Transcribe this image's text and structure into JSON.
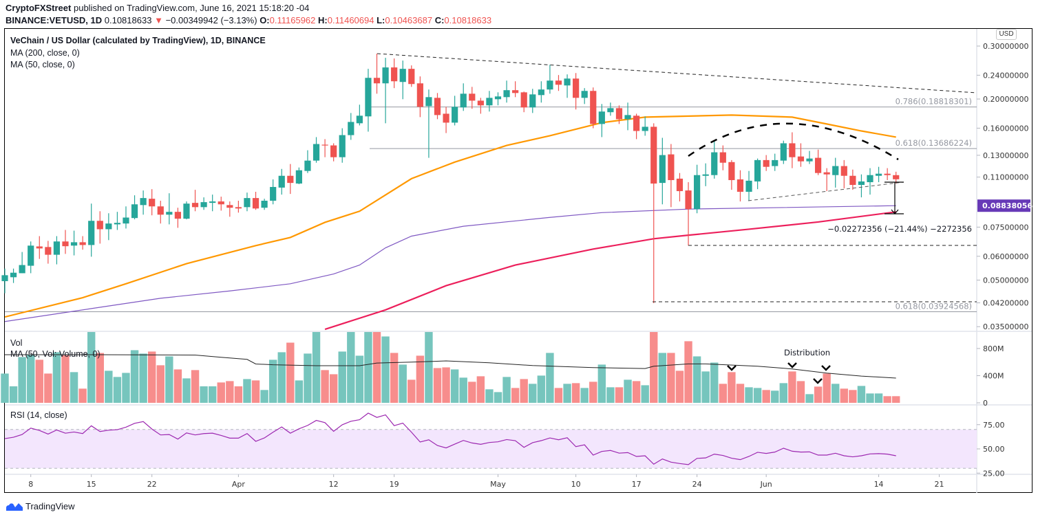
{
  "header": {
    "publisher": "CryptoFXStreet",
    "published_text": "published on TradingView.com, June 16, 2021 15:18:20 -04",
    "symbol": "BINANCE:VETUSD, 1D",
    "last": "0.10818633",
    "change": "−0.00349942 (−3.13%)",
    "o_label": "O:",
    "o": "0.11165962",
    "h_label": "H:",
    "h": "0.11460694",
    "l_label": "L:",
    "l": "0.10463687",
    "c_label": "C:",
    "c": "0.10818633"
  },
  "legend": {
    "title": "VeChain / US Dollar (calculated by TradingView), 1D, BINANCE",
    "ma200": "MA (200, close, 0)",
    "ma50": "MA (50, close, 0)",
    "vol": "Vol",
    "vol_ma": "MA (50, Vol: Volume, 0)",
    "rsi": "RSI (14, close)"
  },
  "currency_button": "USD",
  "footer": {
    "brand": "TradingView"
  },
  "colors": {
    "up": "#26a69a",
    "down": "#ef5350",
    "vol_up": "#76c5bd",
    "vol_down": "#f78d8c",
    "ma50": "#ff9800",
    "ma200": "#ec1f5b",
    "ma_purple": "#7e57c2",
    "rsi": "#9c27b0",
    "rsi_band": "#f3e6fd",
    "fib": "#9598a1",
    "price_label_bg": "#673ab7"
  },
  "chart_data": {
    "type": "candlestick",
    "price_scale": "log",
    "price_axis_ticks": [
      "0.30000000",
      "0.24000000",
      "0.20000000",
      "0.16000000",
      "0.13000000",
      "0.11000000",
      "0.07500000",
      "0.06000000",
      "0.05000000",
      "0.04200000",
      "0.03500000"
    ],
    "time_axis_ticks": [
      "8",
      "15",
      "22",
      "Apr",
      "12",
      "19",
      "May",
      "10",
      "17",
      "24",
      "Jun",
      "14",
      "21"
    ],
    "candles_ohlc": [
      [
        0.0496,
        0.0546,
        0.0452,
        0.0519
      ],
      [
        0.0511,
        0.0546,
        0.0489,
        0.0529
      ],
      [
        0.0527,
        0.062,
        0.0527,
        0.0561
      ],
      [
        0.0558,
        0.0672,
        0.0527,
        0.0651
      ],
      [
        0.0647,
        0.07,
        0.0588,
        0.0637
      ],
      [
        0.0644,
        0.0675,
        0.0567,
        0.0607
      ],
      [
        0.0607,
        0.07,
        0.0564,
        0.0672
      ],
      [
        0.0672,
        0.0734,
        0.0611,
        0.0648
      ],
      [
        0.0651,
        0.073,
        0.0604,
        0.0668
      ],
      [
        0.0668,
        0.07,
        0.0631,
        0.0654
      ],
      [
        0.0654,
        0.0898,
        0.0598,
        0.0787
      ],
      [
        0.0787,
        0.0847,
        0.0661,
        0.0738
      ],
      [
        0.0738,
        0.0834,
        0.0679,
        0.0771
      ],
      [
        0.0766,
        0.0843,
        0.0734,
        0.0775
      ],
      [
        0.0771,
        0.0879,
        0.0742,
        0.0807
      ],
      [
        0.0804,
        0.0957,
        0.0796,
        0.0893
      ],
      [
        0.0888,
        0.0993,
        0.0825,
        0.0937
      ],
      [
        0.0932,
        0.1003,
        0.0821,
        0.0879
      ],
      [
        0.0879,
        0.0918,
        0.0771,
        0.0825
      ],
      [
        0.0825,
        0.0972,
        0.0766,
        0.0843
      ],
      [
        0.0843,
        0.087,
        0.0746,
        0.08
      ],
      [
        0.08,
        0.0913,
        0.0796,
        0.0898
      ],
      [
        0.0903,
        0.0998,
        0.0847,
        0.0874
      ],
      [
        0.0874,
        0.0942,
        0.0856,
        0.0908
      ],
      [
        0.0903,
        0.0962,
        0.0847,
        0.0913
      ],
      [
        0.0913,
        0.0947,
        0.0851,
        0.0893
      ],
      [
        0.0888,
        0.0913,
        0.0812,
        0.087
      ],
      [
        0.0874,
        0.0918,
        0.0838,
        0.0865
      ],
      [
        0.0874,
        0.0977,
        0.0847,
        0.0937
      ],
      [
        0.0937,
        0.0983,
        0.0856,
        0.0865
      ],
      [
        0.087,
        0.0932,
        0.0856,
        0.0918
      ],
      [
        0.0918,
        0.1081,
        0.0893,
        0.102
      ],
      [
        0.1015,
        0.1171,
        0.0962,
        0.1111
      ],
      [
        0.1111,
        0.1216,
        0.0967,
        0.1052
      ],
      [
        0.1047,
        0.1184,
        0.1042,
        0.1159
      ],
      [
        0.1153,
        0.1351,
        0.1135,
        0.1248
      ],
      [
        0.1248,
        0.1494,
        0.1228,
        0.1417
      ],
      [
        0.141,
        0.1471,
        0.1281,
        0.1402
      ],
      [
        0.1402,
        0.1425,
        0.1241,
        0.1281
      ],
      [
        0.1281,
        0.1599,
        0.1228,
        0.1517
      ],
      [
        0.1517,
        0.1797,
        0.1463,
        0.1678
      ],
      [
        0.1661,
        0.1915,
        0.1634,
        0.176
      ],
      [
        0.1751,
        0.252,
        0.1558,
        0.2352
      ],
      [
        0.2352,
        0.2831,
        0.2083,
        0.2255
      ],
      [
        0.2255,
        0.2742,
        0.1661,
        0.2547
      ],
      [
        0.2547,
        0.2728,
        0.2174,
        0.2291
      ],
      [
        0.2279,
        0.2685,
        0.1997,
        0.252
      ],
      [
        0.252,
        0.2587,
        0.2195,
        0.2243
      ],
      [
        0.2255,
        0.2378,
        0.1741,
        0.1884
      ],
      [
        0.1894,
        0.2151,
        0.1275,
        0.2029
      ],
      [
        0.2018,
        0.2094,
        0.1714,
        0.1769
      ],
      [
        0.1787,
        0.1884,
        0.1541,
        0.1669
      ],
      [
        0.1669,
        0.205,
        0.1634,
        0.1884
      ],
      [
        0.1875,
        0.2255,
        0.1826,
        0.2083
      ],
      [
        0.2083,
        0.2195,
        0.1856,
        0.1975
      ],
      [
        0.1975,
        0.2018,
        0.1787,
        0.1905
      ],
      [
        0.1905,
        0.2128,
        0.1817,
        0.2018
      ],
      [
        0.1997,
        0.2105,
        0.1905,
        0.204
      ],
      [
        0.2029,
        0.2303,
        0.1946,
        0.214
      ],
      [
        0.214,
        0.2291,
        0.2029,
        0.2094
      ],
      [
        0.2105,
        0.2117,
        0.1808,
        0.1875
      ],
      [
        0.1875,
        0.2162,
        0.1797,
        0.2072
      ],
      [
        0.2061,
        0.2291,
        0.1946,
        0.2151
      ],
      [
        0.2151,
        0.2599,
        0.2083,
        0.2303
      ],
      [
        0.2303,
        0.2403,
        0.2128,
        0.2231
      ],
      [
        0.2219,
        0.2415,
        0.2018,
        0.2339
      ],
      [
        0.2339,
        0.244,
        0.1846,
        0.2018
      ],
      [
        0.2018,
        0.2174,
        0.1925,
        0.2128
      ],
      [
        0.2128,
        0.2185,
        0.1599,
        0.1652
      ],
      [
        0.1652,
        0.1925,
        0.1494,
        0.1817
      ],
      [
        0.1808,
        0.1946,
        0.176,
        0.1865
      ],
      [
        0.1865,
        0.1905,
        0.1652,
        0.1714
      ],
      [
        0.1714,
        0.1946,
        0.1575,
        0.1769
      ],
      [
        0.176,
        0.1787,
        0.1471,
        0.1566
      ],
      [
        0.1566,
        0.1751,
        0.151,
        0.1617
      ],
      [
        0.1617,
        0.1661,
        0.0419,
        0.1047
      ],
      [
        0.1052,
        0.1486,
        0.0893,
        0.1302
      ],
      [
        0.1309,
        0.1417,
        0.0874,
        0.1075
      ],
      [
        0.1087,
        0.1135,
        0.0913,
        0.0988
      ],
      [
        0.0993,
        0.1058,
        0.0651,
        0.0861
      ],
      [
        0.0861,
        0.1209,
        0.0834,
        0.1117
      ],
      [
        0.1111,
        0.1222,
        0.1026,
        0.1123
      ],
      [
        0.1117,
        0.1447,
        0.1087,
        0.133
      ],
      [
        0.133,
        0.1402,
        0.1159,
        0.1228
      ],
      [
        0.1234,
        0.1253,
        0.0998,
        0.1075
      ],
      [
        0.1081,
        0.1159,
        0.0913,
        0.0983
      ],
      [
        0.0983,
        0.1153,
        0.0918,
        0.107
      ],
      [
        0.1064,
        0.1268,
        0.1003,
        0.1253
      ],
      [
        0.1253,
        0.1302,
        0.1153,
        0.119
      ],
      [
        0.1197,
        0.1316,
        0.1153,
        0.1253
      ],
      [
        0.1248,
        0.1454,
        0.1216,
        0.1425
      ],
      [
        0.1425,
        0.155,
        0.1178,
        0.1281
      ],
      [
        0.1288,
        0.1425,
        0.119,
        0.1241
      ],
      [
        0.1241,
        0.1344,
        0.1216,
        0.1268
      ],
      [
        0.1275,
        0.1358,
        0.1117,
        0.1135
      ],
      [
        0.1141,
        0.1178,
        0.0988,
        0.1123
      ],
      [
        0.1117,
        0.1275,
        0.1015,
        0.1197
      ],
      [
        0.1197,
        0.1253,
        0.1009,
        0.1111
      ],
      [
        0.1111,
        0.1165,
        0.0998,
        0.1036
      ],
      [
        0.1036,
        0.1123,
        0.0942,
        0.1064
      ],
      [
        0.1058,
        0.1178,
        0.0962,
        0.1117
      ],
      [
        0.1111,
        0.119,
        0.1058,
        0.1129
      ],
      [
        0.1129,
        0.1178,
        0.1075,
        0.1117
      ],
      [
        0.11165962,
        0.11460694,
        0.10463687,
        0.10818633
      ]
    ],
    "ma50": [
      [
        "2021-03-05",
        0.0377
      ],
      [
        "2021-03-14",
        0.0437
      ],
      [
        "2021-03-19",
        0.0486
      ],
      [
        "2021-03-26",
        0.0567
      ],
      [
        "2021-04-03",
        0.0651
      ],
      [
        "2021-04-07",
        0.0693
      ],
      [
        "2021-04-11",
        0.0778
      ],
      [
        "2021-04-15",
        0.0847
      ],
      [
        "2021-04-21",
        0.1087
      ],
      [
        "2021-04-26",
        0.1234
      ],
      [
        "2021-05-02",
        0.1402
      ],
      [
        "2021-05-07",
        0.151
      ],
      [
        "2021-05-13",
        0.1669
      ],
      [
        "2021-05-18",
        0.1741
      ],
      [
        "2021-05-28",
        0.1769
      ],
      [
        "2021-06-04",
        0.1741
      ],
      [
        "2021-06-08",
        0.1652
      ],
      [
        "2021-06-12",
        0.1566
      ],
      [
        "2021-06-16",
        0.1494
      ]
    ],
    "ma200": [
      [
        "2021-04-11",
        0.0343
      ],
      [
        "2021-04-18",
        0.0398
      ],
      [
        "2021-04-25",
        0.0479
      ],
      [
        "2021-05-03",
        0.0561
      ],
      [
        "2021-05-12",
        0.0634
      ],
      [
        "2021-05-19",
        0.0686
      ],
      [
        "2021-05-23",
        0.0705
      ],
      [
        "2021-05-30",
        0.0738
      ],
      [
        "2021-06-07",
        0.078
      ],
      [
        "2021-06-16",
        0.0843
      ]
    ],
    "ma_purple": [
      [
        "2021-03-05",
        0.0364
      ],
      [
        "2021-03-15",
        0.0402
      ],
      [
        "2021-03-23",
        0.0435
      ],
      [
        "2021-03-31",
        0.046
      ],
      [
        "2021-04-07",
        0.0486
      ],
      [
        "2021-04-12",
        0.0524
      ],
      [
        "2021-04-15",
        0.0561
      ],
      [
        "2021-04-18",
        0.064
      ],
      [
        "2021-04-21",
        0.07
      ],
      [
        "2021-04-27",
        0.0755
      ],
      [
        "2021-05-07",
        0.0808
      ],
      [
        "2021-05-13",
        0.0838
      ],
      [
        "2021-05-23",
        0.0861
      ],
      [
        "2021-06-16",
        0.08838
      ]
    ],
    "ma_purple_last_label": "0.08838056",
    "fib_levels": [
      {
        "label": "0.786(0.18818301)",
        "value": 0.18818301
      },
      {
        "label": "0.618(0.13686224)",
        "value": 0.13686224
      },
      {
        "label": "0.618(0.03924568)",
        "value": 0.03924568
      }
    ],
    "measure_text": "−0.02272356 (−21.44%) −2272356",
    "annotation_text": "Distribution",
    "volume_axis_ticks": [
      "800M",
      "400M",
      "0"
    ],
    "volume_millions": [
      431,
      243,
      674,
      714,
      634,
      431,
      745,
      701,
      452,
      209,
      1100,
      734,
      472,
      381,
      441,
      775,
      725,
      755,
      553,
      684,
      492,
      360,
      482,
      243,
      243,
      300,
      320,
      243,
      350,
      330,
      189,
      634,
      745,
      886,
      330,
      725,
      1100,
      482,
      421,
      755,
      1100,
      694,
      1200,
      1100,
      977,
      735,
      563,
      340,
      694,
      1100,
      512,
      522,
      492,
      371,
      310,
      391,
      199,
      158,
      381,
      219,
      350,
      280,
      401,
      735,
      219,
      280,
      290,
      219,
      310,
      563,
      229,
      229,
      340,
      320,
      259,
      1100,
      735,
      735,
      472,
      907,
      684,
      462,
      593,
      280,
      452,
      280,
      229,
      219,
      189,
      179,
      290,
      462,
      320,
      128,
      239,
      431,
      280,
      209,
      189,
      249,
      138,
      138,
      98,
      98
    ],
    "volume_ma": [
      [
        "2021-03-05",
        709
      ],
      [
        "2021-03-16",
        709
      ],
      [
        "2021-03-27",
        703
      ],
      [
        "2021-03-30",
        670
      ],
      [
        "2021-04-02",
        640
      ],
      [
        "2021-04-03",
        572
      ],
      [
        "2021-04-05",
        560
      ],
      [
        "2021-04-10",
        546
      ],
      [
        "2021-04-15",
        546
      ],
      [
        "2021-04-17",
        586
      ],
      [
        "2021-04-21",
        600
      ],
      [
        "2021-04-25",
        617
      ],
      [
        "2021-04-30",
        590
      ],
      [
        "2021-05-05",
        549
      ],
      [
        "2021-05-12",
        519
      ],
      [
        "2021-05-18",
        505
      ],
      [
        "2021-05-19",
        539
      ],
      [
        "2021-05-23",
        573
      ],
      [
        "2021-05-25",
        573
      ],
      [
        "2021-05-31",
        539
      ],
      [
        "2021-06-04",
        499
      ],
      [
        "2021-06-08",
        438
      ],
      [
        "2021-06-12",
        394
      ],
      [
        "2021-06-16",
        364
      ]
    ],
    "rsi_axis_ticks": [
      "75.00",
      "50.00",
      "25.00"
    ],
    "rsi_band": [
      30,
      70
    ],
    "rsi": [
      60.6,
      62,
      64.8,
      71.4,
      69,
      65.3,
      69.5,
      66.2,
      67.4,
      65.8,
      73.8,
      67.9,
      69.3,
      69.8,
      72.4,
      76.4,
      78.2,
      70.5,
      64.4,
      64.8,
      60.1,
      66.5,
      64.4,
      65.8,
      66.2,
      63.9,
      61.1,
      61.1,
      65.8,
      57.8,
      61.3,
      67.2,
      72.6,
      66.2,
      70.7,
      74.2,
      79.4,
      77.1,
      68.1,
      74.9,
      78.5,
      80.1,
      86.9,
      82.5,
      85.1,
      74,
      76.6,
      67.2,
      57.1,
      59.4,
      53.5,
      51,
      54.9,
      58.7,
      56.1,
      54.7,
      56.6,
      57.3,
      59.6,
      58.5,
      51.6,
      56.4,
      58.5,
      61.3,
      59.4,
      61.5,
      52.3,
      54.2,
      43.6,
      47.4,
      48.4,
      45.6,
      46.2,
      42.2,
      42.9,
      34.2,
      39.6,
      36.3,
      34.9,
      33.8,
      40.2,
      40.7,
      44.6,
      43.2,
      40.4,
      38.9,
      42.2,
      46.5,
      45.3,
      46.7,
      50.7,
      47.6,
      46.7,
      46.9,
      43.6,
      43.6,
      45.5,
      42.9,
      41.8,
      42.9,
      44.8,
      45.1,
      44.6,
      42.9
    ]
  }
}
